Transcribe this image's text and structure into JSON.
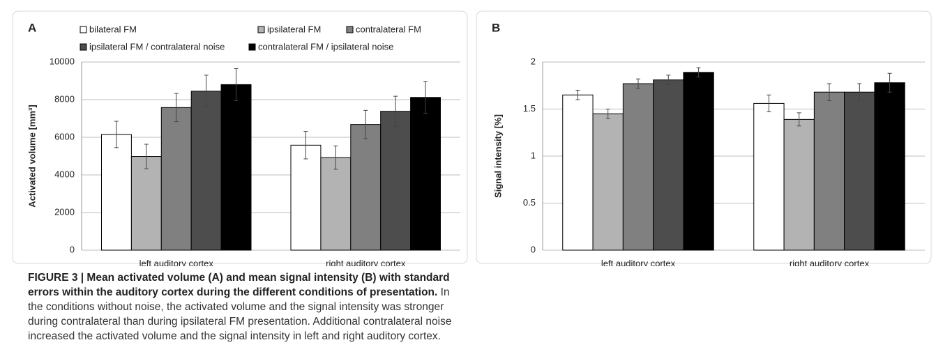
{
  "chart_data": [
    {
      "type": "bar",
      "panel": "A",
      "ylabel": "Activated volume [mm³]",
      "categories": [
        "left auditory cortex",
        "right auditory cortex"
      ],
      "series": [
        {
          "name": "bilateral FM",
          "color": "#ffffff",
          "values": [
            6150,
            5580
          ],
          "errors": [
            700,
            730
          ]
        },
        {
          "name": "ipsilateral FM",
          "color": "#b3b3b3",
          "values": [
            4980,
            4920
          ],
          "errors": [
            650,
            620
          ]
        },
        {
          "name": "contralateral FM",
          "color": "#808080",
          "values": [
            7580,
            6680
          ],
          "errors": [
            750,
            750
          ]
        },
        {
          "name": "ipsilateral FM / contralateral noise",
          "color": "#4d4d4d",
          "values": [
            8450,
            7380
          ],
          "errors": [
            850,
            800
          ]
        },
        {
          "name": "contralateral FM / ipsilateral noise",
          "color": "#000000",
          "values": [
            8800,
            8120
          ],
          "errors": [
            850,
            850
          ]
        }
      ],
      "ylim": [
        0,
        10000
      ],
      "yticks": [
        0,
        2000,
        4000,
        6000,
        8000,
        10000
      ],
      "grid": true,
      "legend": true
    },
    {
      "type": "bar",
      "panel": "B",
      "ylabel": "Signal intensity [%]",
      "categories": [
        "left auditory cortex",
        "right auditory cortex"
      ],
      "series": [
        {
          "name": "bilateral FM",
          "color": "#ffffff",
          "values": [
            1.65,
            1.56
          ],
          "errors": [
            0.05,
            0.09
          ]
        },
        {
          "name": "ipsilateral FM",
          "color": "#b3b3b3",
          "values": [
            1.45,
            1.39
          ],
          "errors": [
            0.05,
            0.07
          ]
        },
        {
          "name": "contralateral FM",
          "color": "#808080",
          "values": [
            1.77,
            1.68
          ],
          "errors": [
            0.05,
            0.09
          ]
        },
        {
          "name": "ipsilateral FM / contralateral noise",
          "color": "#4d4d4d",
          "values": [
            1.81,
            1.68
          ],
          "errors": [
            0.05,
            0.09
          ]
        },
        {
          "name": "contralateral FM / ipsilateral noise",
          "color": "#000000",
          "values": [
            1.89,
            1.78
          ],
          "errors": [
            0.05,
            0.1
          ]
        }
      ],
      "ylim": [
        0,
        2
      ],
      "yticks": [
        0,
        0.5,
        1,
        1.5,
        2
      ],
      "grid": true,
      "legend": false
    }
  ],
  "caption": {
    "label": "FIGURE 3 | Mean activated volume (A) and mean signal intensity (B) with standard errors within the auditory cortex during the different conditions of presentation.",
    "text": "In the conditions without noise, the activated volume and the signal intensity was stronger during contralateral than during ipsilateral FM presentation. Additional contralateral noise increased the activated volume and the signal intensity in left and right auditory cortex."
  }
}
